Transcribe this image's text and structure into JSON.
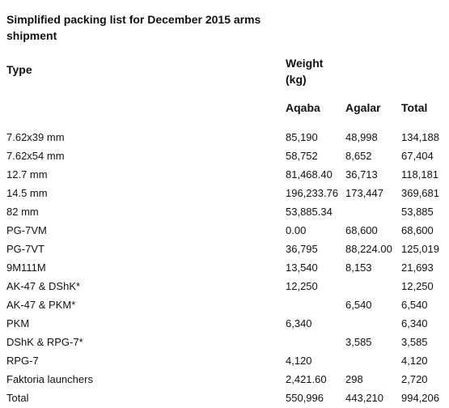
{
  "title": "Simplified packing list for December 2015 arms shipment",
  "table": {
    "header": {
      "type": "Type",
      "weight": "Weight (kg)",
      "aqaba": "Aqaba",
      "agalar": "Agalar",
      "total": "Total"
    },
    "rows": [
      [
        "7.62x39 mm",
        "85,190",
        "48,998",
        "134,188"
      ],
      [
        "7.62x54 mm",
        "58,752",
        "8,652",
        "67,404"
      ],
      [
        "12.7 mm",
        "81,468.40",
        "36,713",
        "118,181"
      ],
      [
        "14.5 mm",
        "196,233.76",
        "173,447",
        "369,681"
      ],
      [
        "82 mm",
        "53,885.34",
        null,
        "53,885"
      ],
      [
        "PG-7VM",
        "0.00",
        "68,600",
        "68,600"
      ],
      [
        "PG-7VT",
        "36,795",
        "88,224.00",
        "125,019"
      ],
      [
        "9M111M",
        "13,540",
        "8,153",
        "21,693"
      ],
      [
        "AK-47 & DShK*",
        "12,250",
        null,
        "12,250"
      ],
      [
        "AK-47 & PKM*",
        null,
        "6,540",
        "6,540"
      ],
      [
        "PKM",
        "6,340",
        null,
        "6,340"
      ],
      [
        "DShK & RPG-7*",
        null,
        "3,585",
        "3,585"
      ],
      [
        "RPG-7",
        "4,120",
        null,
        "4,120"
      ],
      [
        "Faktoria launchers",
        "2,421.60",
        "298",
        "2,720"
      ],
      [
        "Total",
        "550,996",
        "443,210",
        "994,206"
      ]
    ]
  }
}
